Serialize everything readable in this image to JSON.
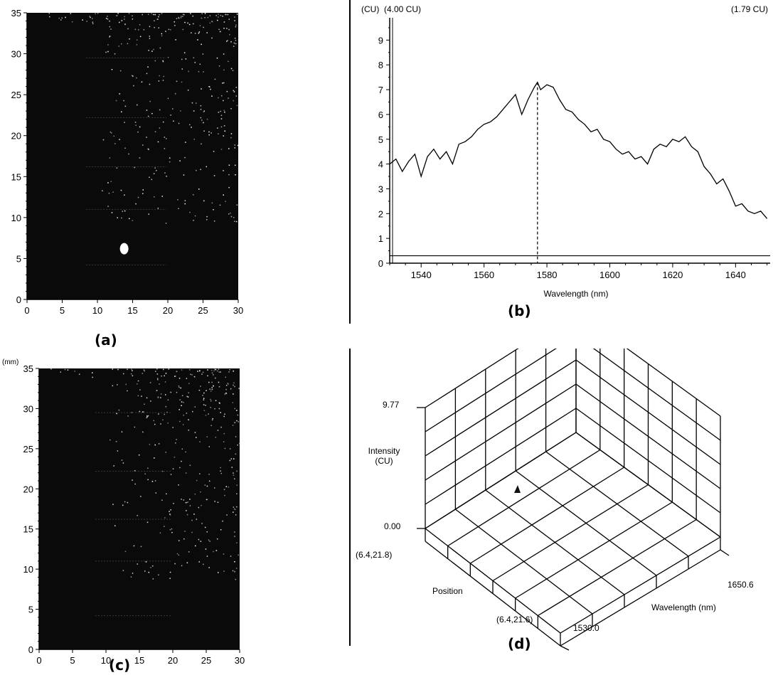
{
  "captions": {
    "a": "(a)",
    "b": "(b)",
    "c": "(c)",
    "d": "(d)"
  },
  "panel_a": {
    "x_ticks": [
      "0",
      "5",
      "10",
      "15",
      "20",
      "25",
      "30"
    ],
    "y_ticks": [
      "0",
      "5",
      "10",
      "15",
      "20",
      "25",
      "30",
      "35"
    ],
    "map_color": "#0a0a0a",
    "marker": {
      "x": 13.8,
      "y": 6.2
    }
  },
  "panel_c": {
    "unit_label": "(mm)",
    "x_ticks": [
      "0",
      "5",
      "10",
      "15",
      "20",
      "25",
      "30"
    ],
    "y_ticks": [
      "0",
      "5",
      "10",
      "15",
      "20",
      "25",
      "30",
      "35"
    ],
    "map_color": "#0a0a0a"
  },
  "chart_data": [
    {
      "type": "line",
      "panel": "b",
      "header_left": "(CU)  (4.00 CU)",
      "header_right": "(1.79 CU)",
      "xlabel": "Wavelength (nm)",
      "ylabel": "",
      "xlim": [
        1530,
        1651
      ],
      "ylim": [
        0,
        9.9
      ],
      "x_ticks": [
        1540,
        1560,
        1580,
        1600,
        1620,
        1640
      ],
      "y_ticks": [
        0,
        1,
        2,
        3,
        4,
        5,
        6,
        7,
        8,
        9
      ],
      "baseline": 0.3,
      "marker_x": 1577,
      "series": [
        {
          "x": [
            1530,
            1532,
            1534,
            1536,
            1538,
            1540,
            1542,
            1544,
            1546,
            1548,
            1550,
            1552,
            1554,
            1556,
            1558,
            1560,
            1562,
            1564,
            1566,
            1568,
            1570,
            1572,
            1574,
            1576,
            1577,
            1578,
            1580,
            1582,
            1584,
            1586,
            1588,
            1590,
            1592,
            1594,
            1596,
            1598,
            1600,
            1602,
            1604,
            1606,
            1608,
            1610,
            1612,
            1614,
            1616,
            1618,
            1620,
            1622,
            1624,
            1626,
            1628,
            1630,
            1632,
            1634,
            1636,
            1638,
            1640,
            1642,
            1644,
            1646,
            1648,
            1650
          ],
          "y": [
            4.0,
            4.2,
            3.7,
            4.1,
            4.4,
            3.5,
            4.3,
            4.6,
            4.2,
            4.5,
            4.0,
            4.8,
            4.9,
            5.1,
            5.4,
            5.6,
            5.7,
            5.9,
            6.2,
            6.5,
            6.8,
            6.0,
            6.6,
            7.1,
            7.3,
            7.0,
            7.2,
            7.1,
            6.6,
            6.2,
            6.1,
            5.8,
            5.6,
            5.3,
            5.4,
            5.0,
            4.9,
            4.6,
            4.4,
            4.5,
            4.2,
            4.3,
            4.0,
            4.6,
            4.8,
            4.7,
            5.0,
            4.9,
            5.1,
            4.7,
            4.5,
            3.9,
            3.6,
            3.2,
            3.4,
            2.9,
            2.3,
            2.4,
            2.1,
            2.0,
            2.1,
            1.8
          ]
        }
      ]
    },
    {
      "type": "surface3d",
      "panel": "d",
      "z_top_label": "9.77",
      "z_bottom_label": "0.00",
      "z_axis_label_line1": "Intensity",
      "z_axis_label_line2": "(CU)",
      "position_start_label": "(6.4,21.8)",
      "position_end_label": "(6.4,21.6)",
      "position_label": "Position",
      "wavelength_start_label": "1530.0",
      "wavelength_end_label": "1650.6",
      "wavelength_label": "Wavelength (nm)"
    }
  ]
}
